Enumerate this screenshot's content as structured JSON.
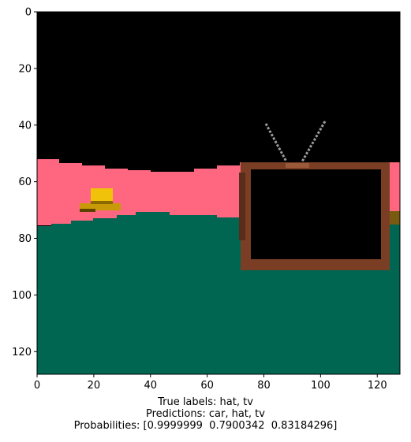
{
  "chart_data": {
    "type": "image",
    "xlim": [
      0,
      128
    ],
    "ylim": [
      128,
      0
    ],
    "x_ticks": [
      0,
      20,
      40,
      60,
      80,
      100,
      120
    ],
    "y_ticks": [
      0,
      20,
      40,
      60,
      80,
      100,
      120
    ],
    "x_tick_labels": [
      "0",
      "20",
      "40",
      "60",
      "80",
      "100",
      "120"
    ],
    "y_tick_labels": [
      "0",
      "20",
      "40",
      "60",
      "80",
      "100",
      "120"
    ],
    "colors": {
      "sky": "#000000",
      "wall": "#ff6680",
      "floor": "#006652",
      "tv_frame": "#7a3e24",
      "hat": "#f0c20a",
      "antenna": "#9a9a9a"
    }
  },
  "caption": {
    "true_labels": "True labels: hat, tv",
    "predictions": "Predictions: car, hat, tv",
    "probabilities": "Probabilities: [0.9999999  0.7900342  0.83184296]"
  }
}
